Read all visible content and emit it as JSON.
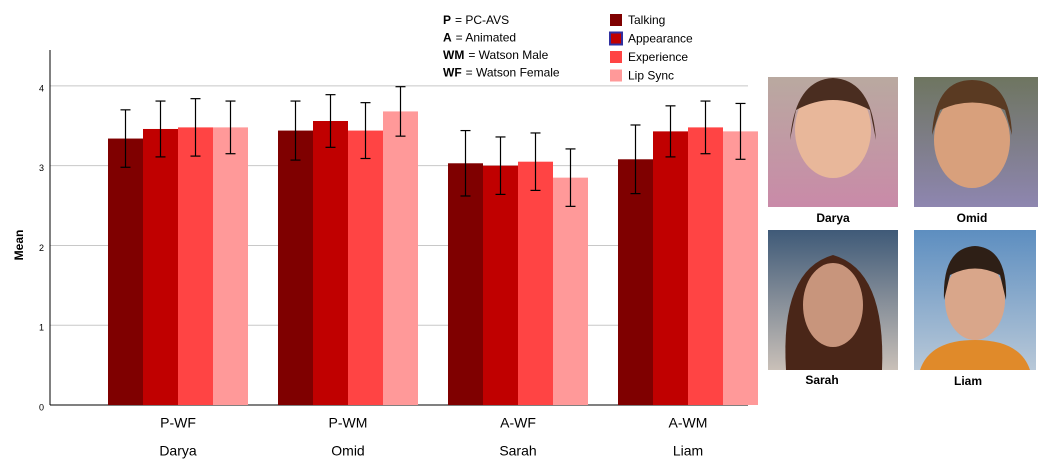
{
  "chart_data": {
    "type": "bar",
    "y_label": "Mean",
    "categories": [
      "P-WF",
      "P-WM",
      "A-WF",
      "A-WM"
    ],
    "subcategories": [
      "Darya",
      "Omid",
      "Sarah",
      "Liam"
    ],
    "series": [
      {
        "name": "Talking",
        "color": "#7f0000",
        "values": [
          3.34,
          3.44,
          3.03,
          3.08
        ],
        "errors": [
          0.36,
          0.37,
          0.41,
          0.43
        ]
      },
      {
        "name": "Appearance",
        "color": "#c00000",
        "edge_color": "#3030a0",
        "values": [
          3.46,
          3.56,
          3.0,
          3.43
        ],
        "errors": [
          0.35,
          0.33,
          0.36,
          0.32
        ]
      },
      {
        "name": "Experience",
        "color": "#ff4444",
        "values": [
          3.48,
          3.44,
          3.05,
          3.48
        ],
        "errors": [
          0.36,
          0.35,
          0.36,
          0.33
        ]
      },
      {
        "name": "Lip Sync",
        "color": "#ff9999",
        "values": [
          3.48,
          3.68,
          2.85,
          3.43
        ],
        "errors": [
          0.33,
          0.31,
          0.36,
          0.35
        ]
      }
    ],
    "ylim": [
      0,
      4.45
    ],
    "yticks": [
      0,
      1,
      2,
      3,
      4
    ],
    "grid": true,
    "key": [
      {
        "abbr": "P",
        "text": "= PC-AVS"
      },
      {
        "abbr": "A",
        "text": "= Animated"
      },
      {
        "abbr": "WM",
        "text": "= Watson Male"
      },
      {
        "abbr": "WF",
        "text": "= Watson Female"
      }
    ]
  },
  "images": [
    {
      "label": "Darya"
    },
    {
      "label": "Omid"
    },
    {
      "label": "Sarah"
    },
    {
      "label": "Liam"
    }
  ]
}
